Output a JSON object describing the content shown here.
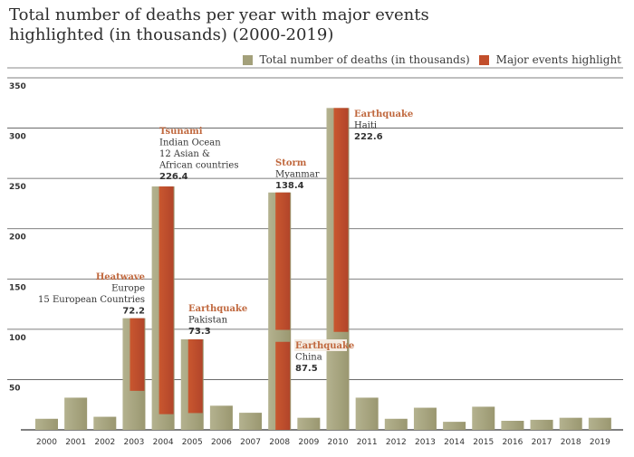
{
  "chart_data": {
    "type": "bar",
    "title_line1": "Total number of deaths per year with major events",
    "title_line2": "highlighted (in thousands) (2000-2019)",
    "xlabel": "",
    "ylabel": "",
    "ylim": [
      0,
      350
    ],
    "yticks": [
      50,
      100,
      150,
      200,
      250,
      300,
      350
    ],
    "grid": true,
    "legend_position": "top-right",
    "legend": [
      {
        "name": "Total number of deaths (in thousands)",
        "color": "#a3a07a"
      },
      {
        "name": "Major events highlight",
        "color": "#c24e2b"
      }
    ],
    "categories": [
      "2000",
      "2001",
      "2002",
      "2003",
      "2004",
      "2005",
      "2006",
      "2007",
      "2008",
      "2009",
      "2010",
      "2011",
      "2012",
      "2013",
      "2014",
      "2015",
      "2016",
      "2017",
      "2018",
      "2019"
    ],
    "series": [
      {
        "name": "Total number of deaths (in thousands)",
        "values": [
          11,
          32,
          13,
          111,
          242,
          90,
          24,
          17,
          236,
          12,
          320,
          32,
          11,
          22,
          8,
          23,
          9,
          10,
          12,
          12
        ]
      }
    ],
    "events": [
      {
        "year": "2003",
        "type": "Heatwave",
        "lines": [
          "Europe",
          "15 European Countries"
        ],
        "value": "72.2",
        "deaths": 72.2,
        "position": "top"
      },
      {
        "year": "2004",
        "type": "Tsunami",
        "lines": [
          "Indian Ocean",
          "12 Asian &",
          "African countries"
        ],
        "value": "226.4",
        "deaths": 226.4,
        "position": "top"
      },
      {
        "year": "2005",
        "type": "Earthquake",
        "lines": [
          "Pakistan"
        ],
        "value": "73.3",
        "deaths": 73.3,
        "position": "top"
      },
      {
        "year": "2008",
        "type": "Storm",
        "lines": [
          "Myanmar"
        ],
        "value": "138.4",
        "deaths": 138.4,
        "position": "top"
      },
      {
        "year": "2008",
        "type": "Earthquake",
        "lines": [
          "China"
        ],
        "value": "87.5",
        "deaths": 87.5,
        "position": "bottom"
      },
      {
        "year": "2010",
        "type": "Earthquake",
        "lines": [
          "Haiti"
        ],
        "value": "222.6",
        "deaths": 222.6,
        "position": "top"
      }
    ]
  }
}
